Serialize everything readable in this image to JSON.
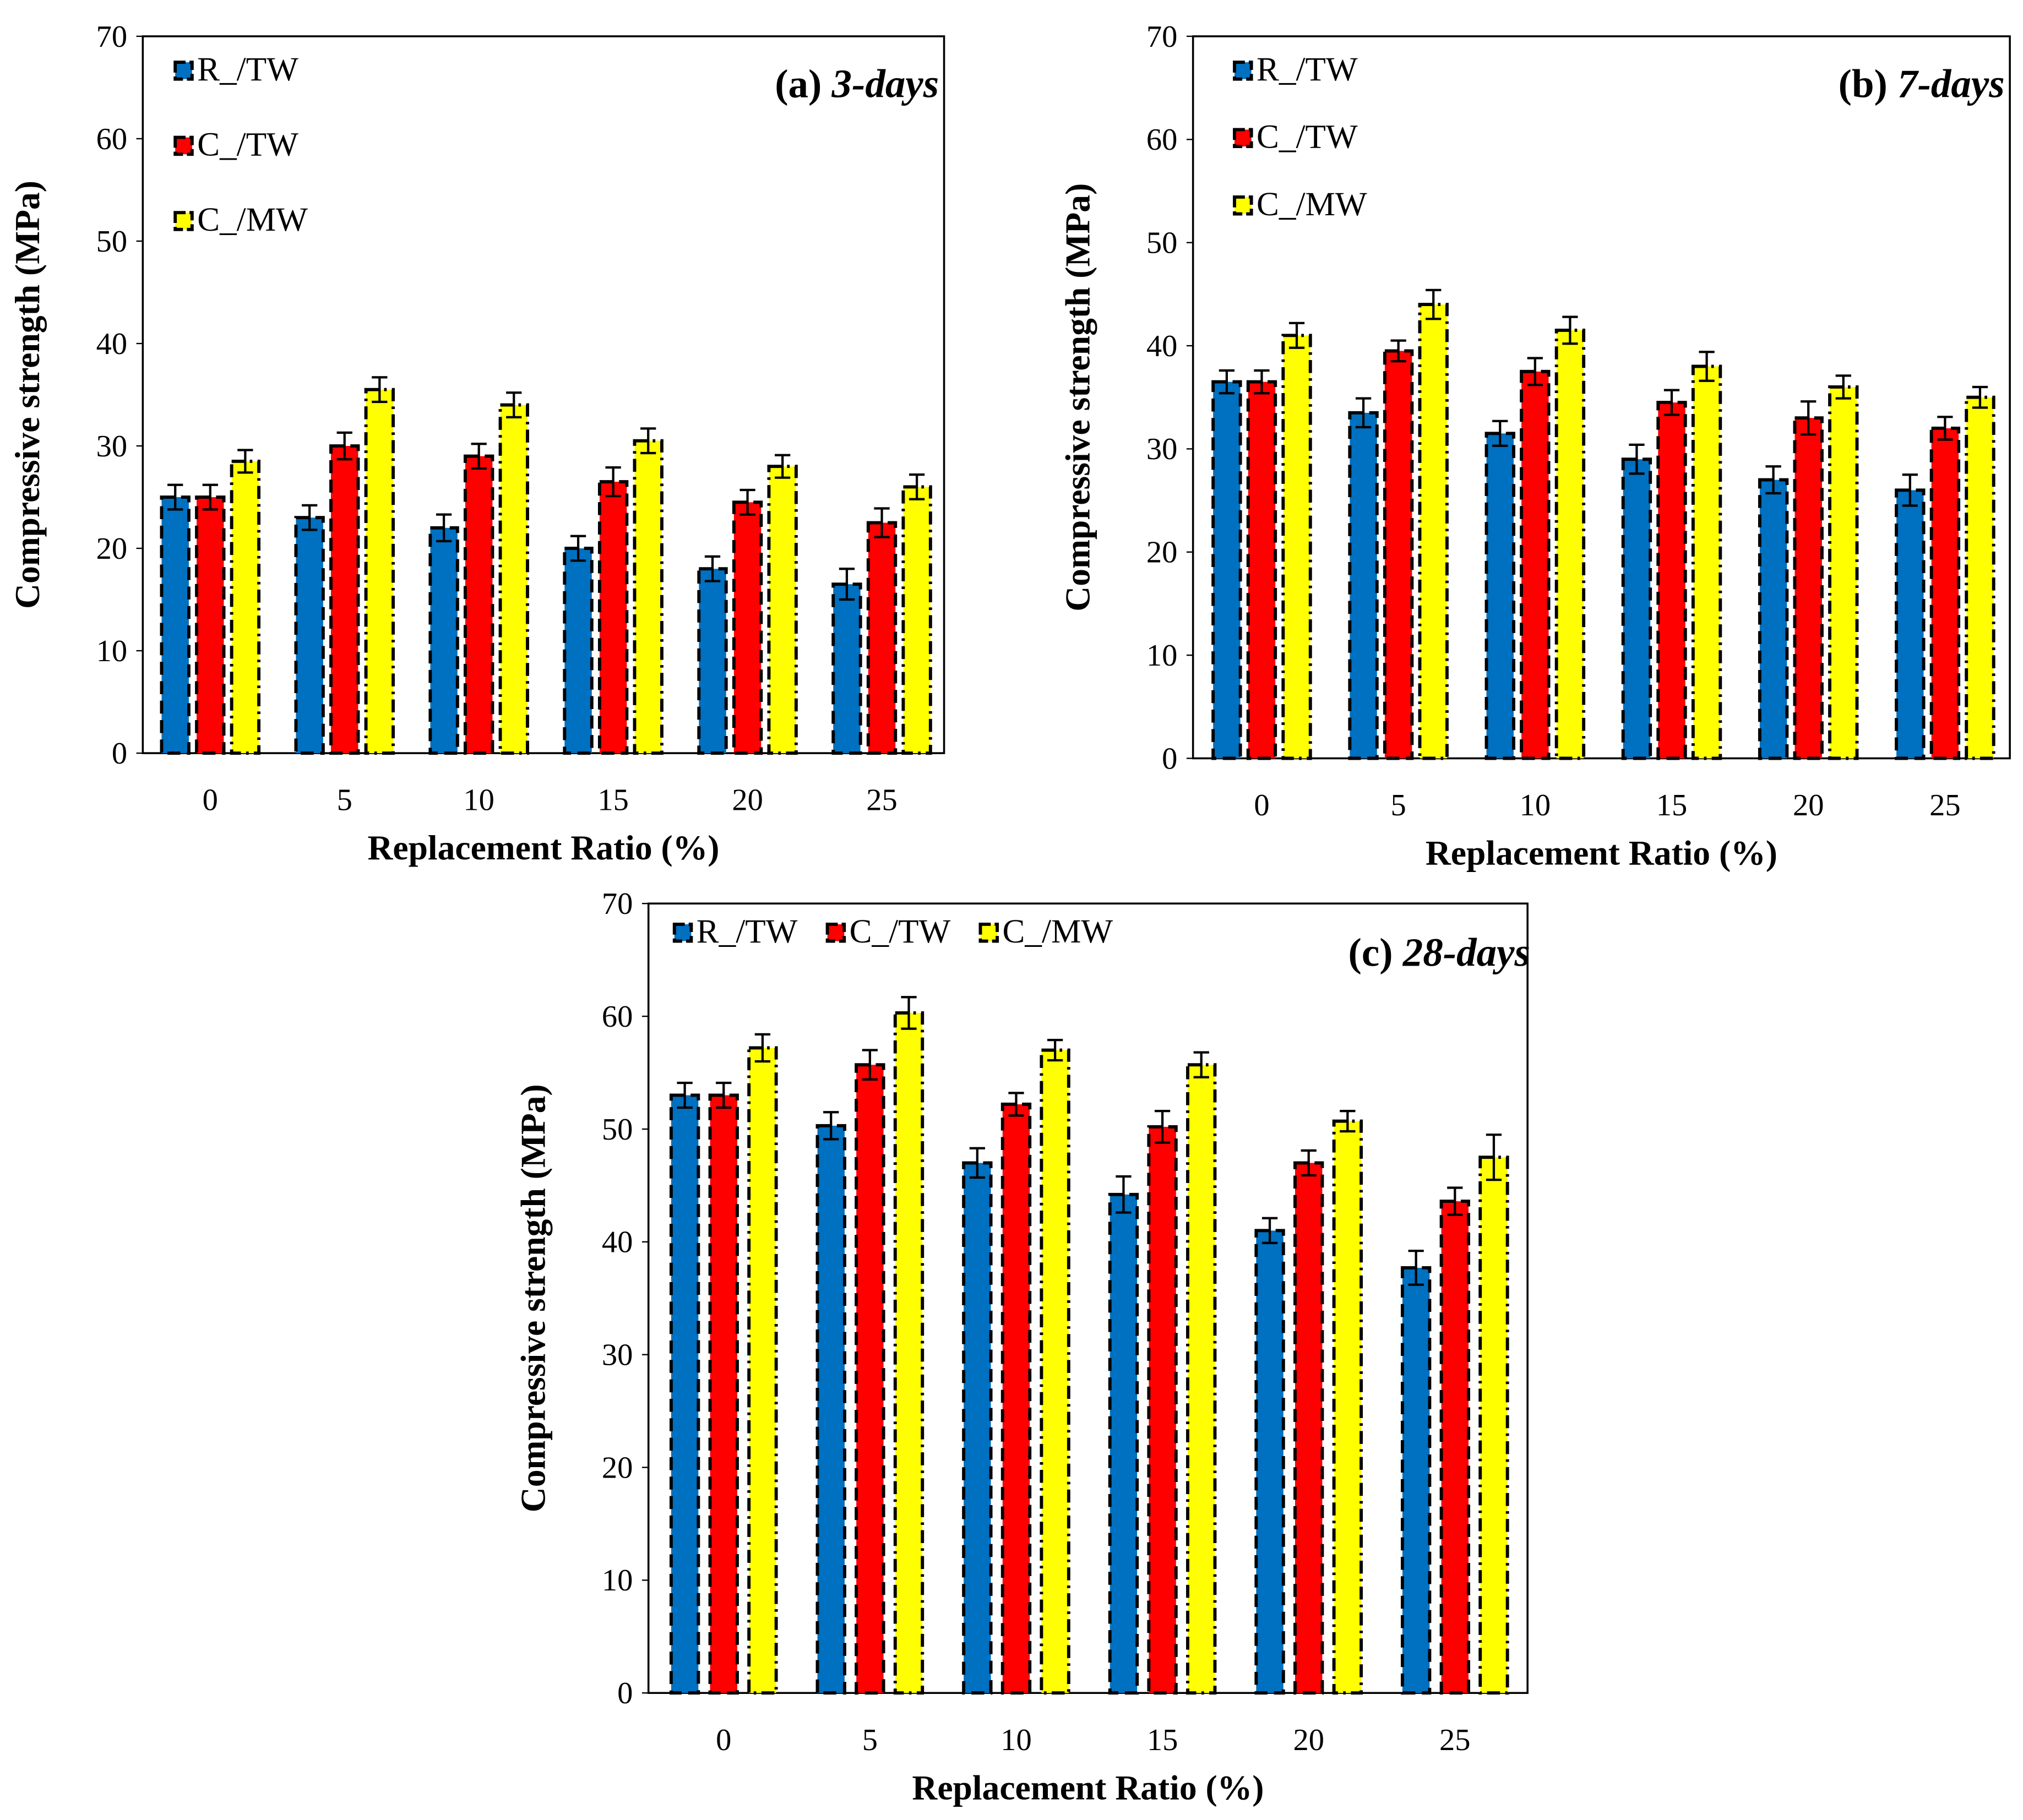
{
  "colors": {
    "R_/TW": "#0070c0",
    "C_/TW": "#ff0000",
    "C_/MW": "#ffff00"
  },
  "chart_data": [
    {
      "type": "bar",
      "title": "(a) ",
      "title_italic": "3-days",
      "xlabel": "Replacement Ratio (%)",
      "ylabel": "Compressive strength (MPa)",
      "categories": [
        "0",
        "5",
        "10",
        "15",
        "20",
        "25"
      ],
      "ylim": [
        0,
        70
      ],
      "yticks": [
        "0",
        "10",
        "20",
        "30",
        "40",
        "50",
        "60",
        "70"
      ],
      "legend": "top-left-vertical",
      "series": [
        {
          "name": "R_/TW",
          "values": [
            25,
            23,
            22,
            20,
            18,
            16.5
          ],
          "errors": [
            1.2,
            1.2,
            1.3,
            1.2,
            1.2,
            1.5
          ]
        },
        {
          "name": "C_/TW",
          "values": [
            25,
            30,
            29,
            26.5,
            24.5,
            22.5
          ],
          "errors": [
            1.2,
            1.3,
            1.2,
            1.4,
            1.2,
            1.4
          ]
        },
        {
          "name": "C_/MW",
          "values": [
            28.5,
            35.5,
            34,
            30.5,
            28,
            26
          ],
          "errors": [
            1.1,
            1.2,
            1.2,
            1.2,
            1.1,
            1.2
          ]
        }
      ]
    },
    {
      "type": "bar",
      "title": "(b) ",
      "title_italic": "7-days",
      "xlabel": "Replacement Ratio (%)",
      "ylabel": "Compressive strength (MPa)",
      "categories": [
        "0",
        "5",
        "10",
        "15",
        "20",
        "25"
      ],
      "ylim": [
        0,
        70
      ],
      "yticks": [
        "0",
        "10",
        "20",
        "30",
        "40",
        "50",
        "60",
        "70"
      ],
      "legend": "top-left-vertical",
      "series": [
        {
          "name": "R_/TW",
          "values": [
            36.5,
            33.5,
            31.5,
            29,
            27,
            26
          ],
          "errors": [
            1.1,
            1.4,
            1.2,
            1.4,
            1.3,
            1.5
          ]
        },
        {
          "name": "C_/TW",
          "values": [
            36.5,
            39.5,
            37.5,
            34.5,
            33,
            32
          ],
          "errors": [
            1.1,
            1.0,
            1.3,
            1.2,
            1.6,
            1.1
          ]
        },
        {
          "name": "C_/MW",
          "values": [
            41,
            44,
            41.5,
            38,
            36,
            35
          ],
          "errors": [
            1.2,
            1.4,
            1.3,
            1.4,
            1.1,
            1.0
          ]
        }
      ]
    },
    {
      "type": "bar",
      "title": "(c) ",
      "title_italic": "28-days",
      "xlabel": "Replacement Ratio (%)",
      "ylabel": "Compressive strength (MPa)",
      "categories": [
        "0",
        "5",
        "10",
        "15",
        "20",
        "25"
      ],
      "ylim": [
        0,
        70
      ],
      "yticks": [
        "0",
        "10",
        "20",
        "30",
        "40",
        "50",
        "60",
        "70"
      ],
      "legend": "top-left-horizontal",
      "series": [
        {
          "name": "R_/TW",
          "values": [
            53,
            50.3,
            47,
            44.2,
            41,
            37.7
          ],
          "errors": [
            1.1,
            1.2,
            1.3,
            1.6,
            1.1,
            1.5
          ]
        },
        {
          "name": "C_/TW",
          "values": [
            53,
            55.7,
            52.2,
            50.2,
            47,
            43.6
          ],
          "errors": [
            1.1,
            1.3,
            1.0,
            1.4,
            1.1,
            1.2
          ]
        },
        {
          "name": "C_/MW",
          "values": [
            57.2,
            60.3,
            57,
            55.7,
            50.7,
            47.5
          ],
          "errors": [
            1.2,
            1.4,
            0.9,
            1.1,
            0.9,
            2.0
          ]
        }
      ]
    }
  ]
}
